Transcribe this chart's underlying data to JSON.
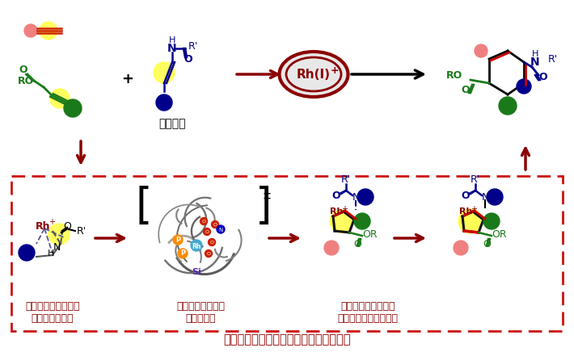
{
  "background_color": "#ffffff",
  "dashed_box_color": "#cc1111",
  "dark_red": "#8b0000",
  "pink": "#f08080",
  "green": "#1a7a1a",
  "blue": "#00008b",
  "yellow": "#ffff44",
  "orange": "#ff8c00",
  "cyan_rh": "#44aacc",
  "bottom_text": "計算化学によるシミュレーションの結果",
  "label1": "まずエナミドが配位\nするが反応せず",
  "label2": "次に残り２分子が\n配位し反応",
  "label3": "３分子揃った段階で\n初めてエナミドも反応",
  "enamide": "エナミド",
  "rh_label": "Rh(I)"
}
